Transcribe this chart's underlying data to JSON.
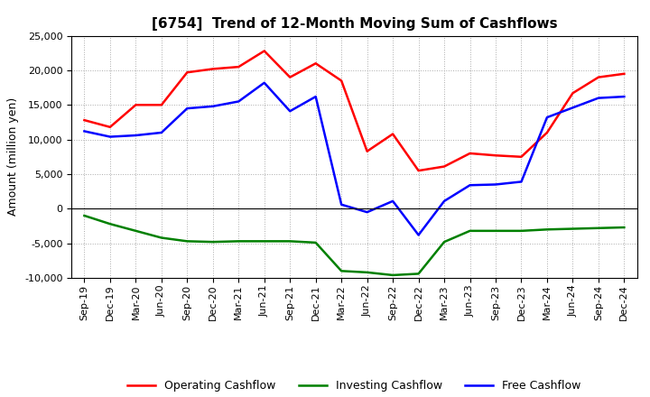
{
  "title": "[6754]  Trend of 12-Month Moving Sum of Cashflows",
  "ylabel": "Amount (million yen)",
  "x_labels": [
    "Sep-19",
    "Dec-19",
    "Mar-20",
    "Jun-20",
    "Sep-20",
    "Dec-20",
    "Mar-21",
    "Jun-21",
    "Sep-21",
    "Dec-21",
    "Mar-22",
    "Jun-22",
    "Sep-22",
    "Dec-22",
    "Mar-23",
    "Jun-23",
    "Sep-23",
    "Dec-23",
    "Mar-24",
    "Jun-24",
    "Sep-24",
    "Dec-24"
  ],
  "operating": [
    12800,
    11800,
    15000,
    15000,
    19700,
    20200,
    20500,
    22800,
    19000,
    21000,
    18500,
    8300,
    10800,
    5500,
    6100,
    8000,
    7700,
    7500,
    11000,
    16700,
    19000,
    19500
  ],
  "investing": [
    -1000,
    -2200,
    -3200,
    -4200,
    -4700,
    -4800,
    -4700,
    -4700,
    -4700,
    -4900,
    -9000,
    -9200,
    -9600,
    -9400,
    -4800,
    -3200,
    -3200,
    -3200,
    -3000,
    -2900,
    -2800,
    -2700
  ],
  "free": [
    11200,
    10400,
    10600,
    11000,
    14500,
    14800,
    15500,
    18200,
    14100,
    16200,
    600,
    -500,
    1100,
    -3800,
    1100,
    3400,
    3500,
    3900,
    13200,
    14600,
    16000,
    16200
  ],
  "ylim": [
    -10000,
    25000
  ],
  "yticks": [
    -10000,
    -5000,
    0,
    5000,
    10000,
    15000,
    20000,
    25000
  ],
  "operating_color": "#ff0000",
  "investing_color": "#008000",
  "free_color": "#0000ff",
  "line_width": 1.8,
  "bg_color": "#ffffff",
  "plot_bg_color": "#ffffff",
  "grid_color": "#aaaaaa",
  "title_fontsize": 11,
  "axis_fontsize": 9,
  "tick_fontsize": 8,
  "legend_fontsize": 9
}
